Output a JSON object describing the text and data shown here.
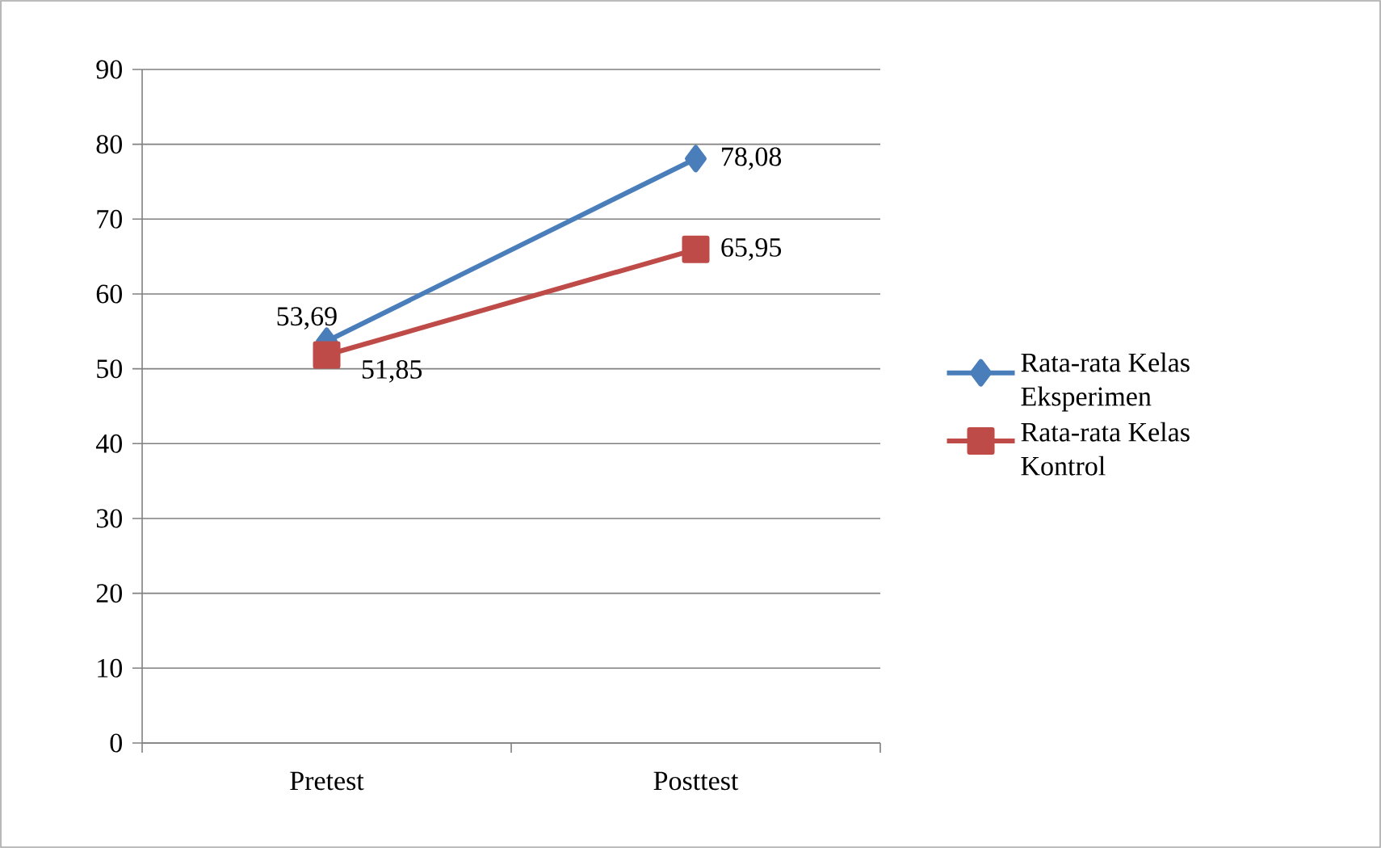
{
  "chart_data": {
    "type": "line",
    "categories": [
      "Pretest",
      "Posttest"
    ],
    "series": [
      {
        "name": "Rata-rata Kelas Eksperimen",
        "color": "#4a7ebb",
        "marker": "diamond",
        "values": [
          53.69,
          78.08
        ],
        "value_labels": [
          "53,69",
          "78,08"
        ]
      },
      {
        "name": "Rata-rata Kelas Kontrol",
        "color": "#be4b48",
        "marker": "square",
        "values": [
          51.85,
          65.95
        ],
        "value_labels": [
          "51,85",
          "65,95"
        ]
      }
    ],
    "ylim": [
      0,
      90
    ],
    "yticks": [
      0,
      10,
      20,
      30,
      40,
      50,
      60,
      70,
      80,
      90
    ],
    "grid": "y",
    "legend": "right",
    "line_style": "solid"
  }
}
